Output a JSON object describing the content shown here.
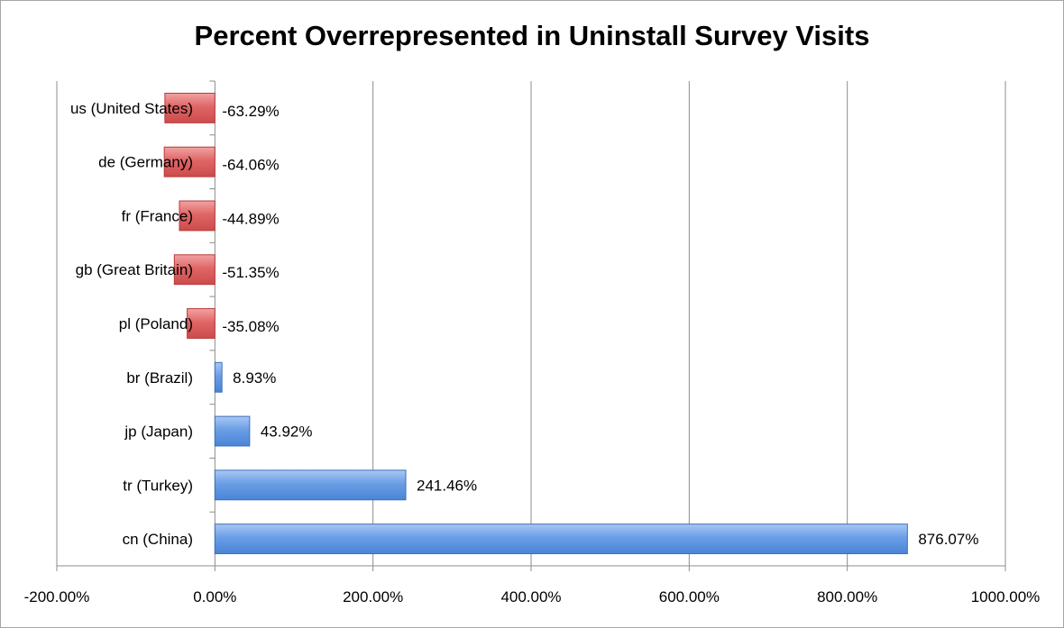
{
  "chart_data": {
    "type": "bar",
    "orientation": "horizontal",
    "title": "Percent Overrepresented in Uninstall Survey Visits",
    "xlabel": "",
    "ylabel": "",
    "categories": [
      "us (United States)",
      "de (Germany)",
      "fr (France)",
      "gb (Great Britain)",
      "pl (Poland)",
      "br (Brazil)",
      "jp (Japan)",
      "tr (Turkey)",
      "cn (China)"
    ],
    "values": [
      -63.29,
      -64.06,
      -44.89,
      -51.35,
      -35.08,
      8.93,
      43.92,
      241.46,
      876.07
    ],
    "data_labels": [
      "-63.29%",
      "-64.06%",
      "-44.89%",
      "-51.35%",
      "-35.08%",
      "8.93%",
      "43.92%",
      "241.46%",
      "876.07%"
    ],
    "xlim": [
      -200,
      1000
    ],
    "x_ticks": [
      -200,
      0,
      200,
      400,
      600,
      800,
      1000
    ],
    "x_tick_labels": [
      "-200.00%",
      "0.00%",
      "200.00%",
      "400.00%",
      "600.00%",
      "800.00%",
      "1000.00%"
    ],
    "grid": "vertical",
    "legend": "none",
    "colors": {
      "positive_fill": "#6a9ee6",
      "positive_stroke": "#3d6fb8",
      "negative_fill": "#e06666",
      "negative_stroke": "#b83b3b",
      "grid": "#8c8c8c",
      "axis": "#8c8c8c"
    }
  }
}
